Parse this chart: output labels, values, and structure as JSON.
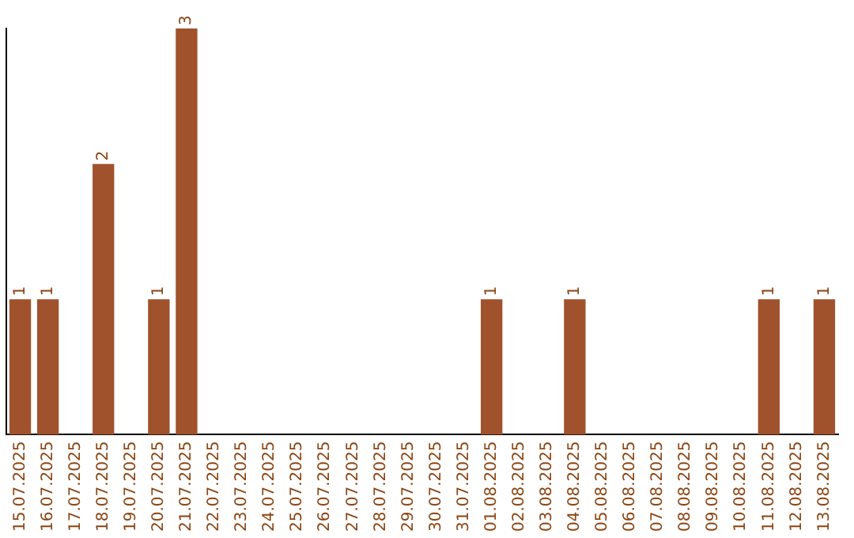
{
  "chart_data": {
    "type": "bar",
    "categories": [
      "15.07.2025",
      "16.07.2025",
      "17.07.2025",
      "18.07.2025",
      "19.07.2025",
      "20.07.2025",
      "21.07.2025",
      "22.07.2025",
      "23.07.2025",
      "24.07.2025",
      "25.07.2025",
      "26.07.2025",
      "27.07.2025",
      "28.07.2025",
      "29.07.2025",
      "30.07.2025",
      "31.07.2025",
      "01.08.2025",
      "02.08.2025",
      "03.08.2025",
      "04.08.2025",
      "05.08.2025",
      "06.08.2025",
      "07.08.2025",
      "08.08.2025",
      "09.08.2025",
      "10.08.2025",
      "11.08.2025",
      "12.08.2025",
      "13.08.2025"
    ],
    "values": [
      1,
      1,
      0,
      2,
      0,
      1,
      3,
      0,
      0,
      0,
      0,
      0,
      0,
      0,
      0,
      0,
      0,
      1,
      0,
      0,
      1,
      0,
      0,
      0,
      0,
      0,
      0,
      1,
      0,
      1
    ],
    "value_labels": [
      "1",
      "1",
      null,
      "2",
      null,
      "1",
      "3",
      null,
      null,
      null,
      null,
      null,
      null,
      null,
      null,
      null,
      null,
      "1",
      null,
      null,
      "1",
      null,
      null,
      null,
      null,
      null,
      null,
      "1",
      null,
      "1"
    ],
    "color": "#a0522d",
    "tick_labels": "x",
    "grid": false,
    "legend": false
  }
}
